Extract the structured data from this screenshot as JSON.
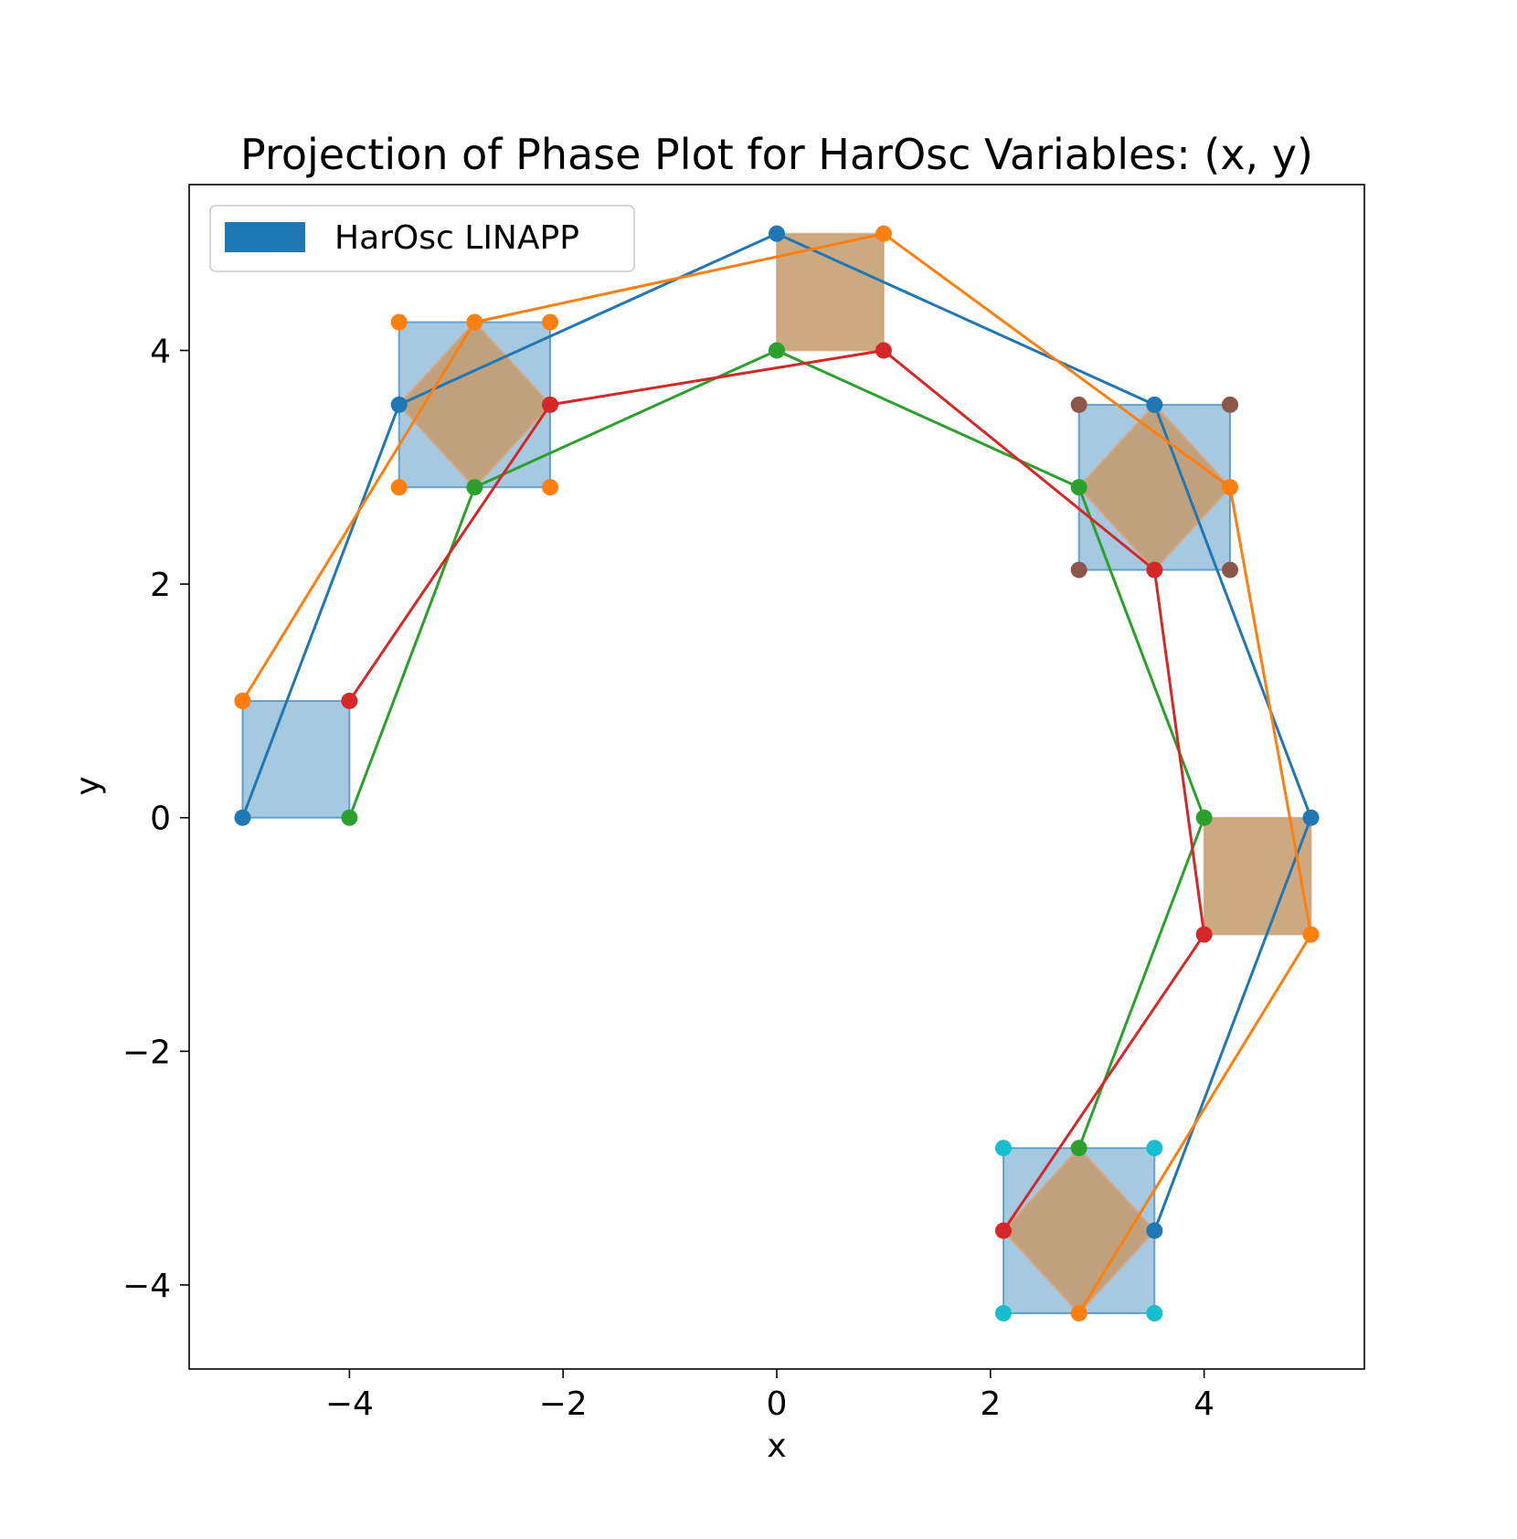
{
  "chart_data": {
    "type": "line",
    "title": "Projection of Phase Plot for HarOsc Variables: (x, y)",
    "xlabel": "x",
    "ylabel": "y",
    "xlim": [
      -5.5,
      5.5
    ],
    "ylim": [
      -4.72,
      5.42
    ],
    "xticks": [
      -4,
      -2,
      0,
      2,
      4
    ],
    "yticks": [
      -4,
      -2,
      0,
      2,
      4
    ],
    "xtick_labels": [
      "−4",
      "−2",
      "0",
      "2",
      "4"
    ],
    "ytick_labels": [
      "−4",
      "−2",
      "0",
      "2",
      "4"
    ],
    "grid": false,
    "legend": {
      "placement": "top-left",
      "entries": [
        {
          "label": "HarOsc LINAPP",
          "color": "#1f77b4"
        }
      ]
    },
    "boxes": [
      {
        "x": [
          -5,
          -4
        ],
        "y": [
          0,
          1
        ],
        "color": "#1f77b4",
        "opacity": 0.4
      },
      {
        "x": [
          -3.5355,
          -2.1213
        ],
        "y": [
          2.8284,
          4.2426
        ],
        "color": "#1f77b4",
        "opacity": 0.4
      },
      {
        "x": [
          2.8284,
          4.2426
        ],
        "y": [
          2.1213,
          3.5355
        ],
        "color": "#1f77b4",
        "opacity": 0.4
      },
      {
        "x": [
          2.1213,
          3.5355
        ],
        "y": [
          -4.2426,
          -2.8284
        ],
        "color": "#1f77b4",
        "opacity": 0.4
      },
      {
        "x": [
          0,
          1
        ],
        "y": [
          4,
          5
        ],
        "color": "#c49a6c",
        "opacity": 0.85
      },
      {
        "x": [
          4,
          5
        ],
        "y": [
          -1,
          0
        ],
        "color": "#c49a6c",
        "opacity": 0.85
      }
    ],
    "diamonds": [
      {
        "points": [
          [
            -3.5355,
            3.5355
          ],
          [
            -2.8284,
            4.2426
          ],
          [
            -2.1213,
            3.5355
          ],
          [
            -2.8284,
            2.8284
          ]
        ],
        "color": "#c49a6c",
        "opacity": 0.85
      },
      {
        "points": [
          [
            2.8284,
            2.8284
          ],
          [
            3.5355,
            3.5355
          ],
          [
            4.2426,
            2.8284
          ],
          [
            3.5355,
            2.1213
          ]
        ],
        "color": "#c49a6c",
        "opacity": 0.85
      },
      {
        "points": [
          [
            2.1213,
            -3.5355
          ],
          [
            2.8284,
            -2.8284
          ],
          [
            3.5355,
            -3.5355
          ],
          [
            2.8284,
            -4.2426
          ]
        ],
        "color": "#c49a6c",
        "opacity": 0.85
      }
    ],
    "series": [
      {
        "color": "#1f77b4",
        "x": [
          -5,
          -3.5355,
          0,
          3.5355,
          5,
          3.5355
        ],
        "y": [
          0,
          3.5355,
          5,
          3.5355,
          0,
          -3.5355
        ]
      },
      {
        "color": "#ff7f0e",
        "x": [
          -5,
          -2.8284,
          1,
          4.2426,
          5,
          2.8284
        ],
        "y": [
          1,
          4.2426,
          5,
          2.8284,
          -1,
          -4.2426
        ]
      },
      {
        "color": "#2ca02c",
        "x": [
          -4,
          -2.8284,
          0,
          2.8284,
          4,
          2.8284
        ],
        "y": [
          0,
          2.8284,
          4,
          2.8284,
          0,
          -2.8284
        ]
      },
      {
        "color": "#d62728",
        "x": [
          -4,
          -2.1213,
          1,
          3.5355,
          4,
          2.1213
        ],
        "y": [
          1,
          3.5355,
          4,
          2.1213,
          -1,
          -3.5355
        ]
      }
    ],
    "extra_points": [
      {
        "color": "#ff7f0e",
        "x": [
          -3.5355,
          -2.1213,
          -3.5355,
          -2.1213
        ],
        "y": [
          4.2426,
          4.2426,
          2.8284,
          2.8284
        ]
      },
      {
        "color": "#8c564b",
        "x": [
          2.8284,
          4.2426,
          2.8284,
          4.2426,
          -5
        ],
        "y": [
          3.5355,
          3.5355,
          2.1213,
          2.1213,
          1
        ]
      },
      {
        "color": "#17becf",
        "x": [
          2.1213,
          3.5355,
          2.1213,
          3.5355
        ],
        "y": [
          -2.8284,
          -2.8284,
          -4.2426,
          -4.2426
        ]
      }
    ]
  }
}
